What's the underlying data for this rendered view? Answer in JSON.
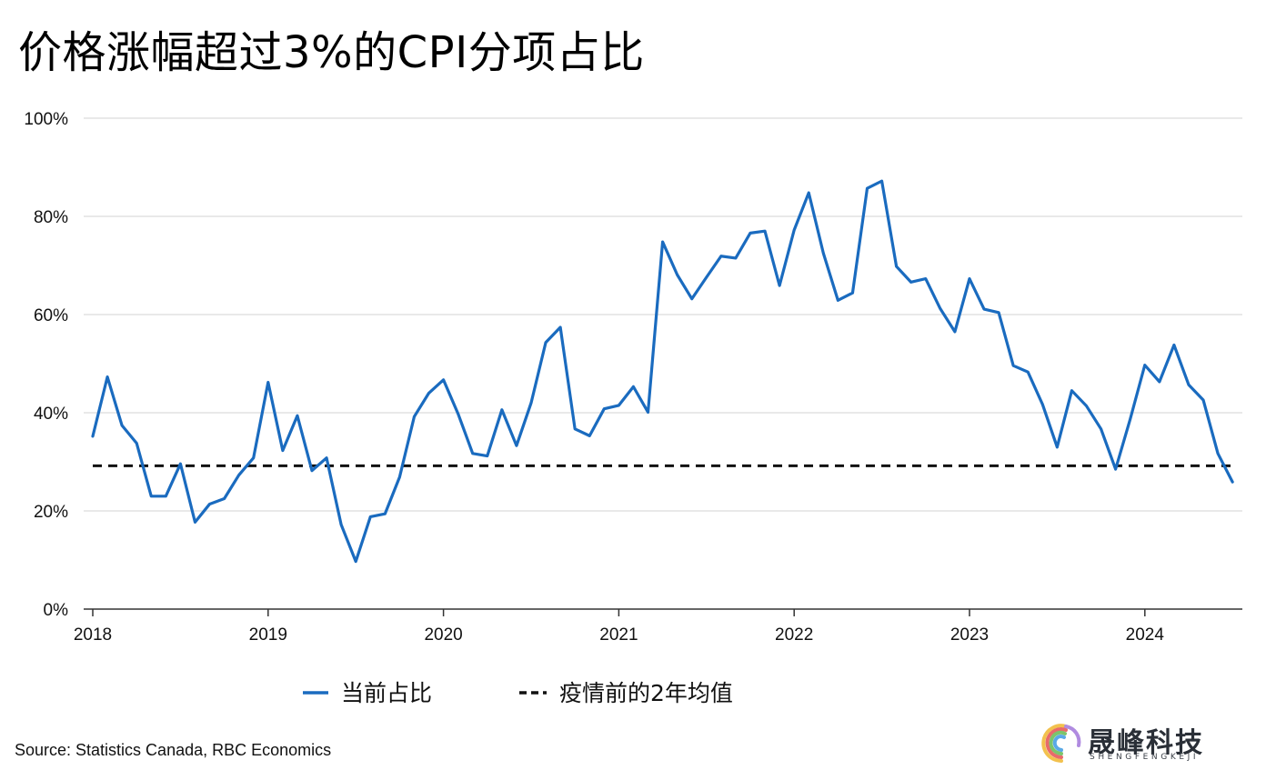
{
  "title": "价格涨幅超过3%的CPI分项占比",
  "source": "Source: Statistics Canada, RBC Economics",
  "watermark": {
    "name": "晟峰科技",
    "sub": "SHENGFENGKEJI"
  },
  "chart_data": {
    "type": "line",
    "title": "价格涨幅超过3%的CPI分项占比",
    "xlabel": "",
    "ylabel": "",
    "ylim": [
      0,
      100
    ],
    "xlim": [
      2018,
      2024.55
    ],
    "yticks": [
      0,
      20,
      40,
      60,
      80,
      100
    ],
    "ytick_labels": [
      "0%",
      "20%",
      "40%",
      "60%",
      "80%",
      "100%"
    ],
    "xticks": [
      2018,
      2019,
      2020,
      2021,
      2022,
      2023,
      2024
    ],
    "xtick_labels": [
      "2018",
      "2019",
      "2020",
      "2021",
      "2022",
      "2023",
      "2024"
    ],
    "grid": "horizontal",
    "legend_position": "bottom",
    "colors": {
      "current": "#1a6bbf",
      "baseline": "#111111",
      "grid": "#e2e2e2",
      "axis": "#333333"
    },
    "series": [
      {
        "name": "当前占比",
        "style": "solid",
        "x_start": 2018.0,
        "x_step": 0.08333,
        "values": [
          35.2,
          47.3,
          37.4,
          33.8,
          23.0,
          23.0,
          29.6,
          17.7,
          21.4,
          22.5,
          27.3,
          30.8,
          46.2,
          32.3,
          39.4,
          28.2,
          30.8,
          17.2,
          9.7,
          18.8,
          19.4,
          26.9,
          39.2,
          44.0,
          46.7,
          39.8,
          31.7,
          31.2,
          40.6,
          33.3,
          42.0,
          54.3,
          57.4,
          36.7,
          35.3,
          40.8,
          41.5,
          45.3,
          40.1,
          74.8,
          68.1,
          63.2,
          67.6,
          71.9,
          71.5,
          76.6,
          77.0,
          65.9,
          77.2,
          84.8,
          72.5,
          62.9,
          64.4,
          85.7,
          87.2,
          69.8,
          66.6,
          67.3,
          61.2,
          56.5,
          67.3,
          61.1,
          60.4,
          49.6,
          48.3,
          41.7,
          33.0,
          44.5,
          41.4,
          36.7,
          28.5,
          38.7,
          49.7,
          46.3,
          53.8,
          45.7,
          42.6,
          31.7,
          25.9
        ]
      },
      {
        "name": "疫情前的2年均值",
        "style": "dashed",
        "values": [
          29.2
        ]
      }
    ]
  }
}
